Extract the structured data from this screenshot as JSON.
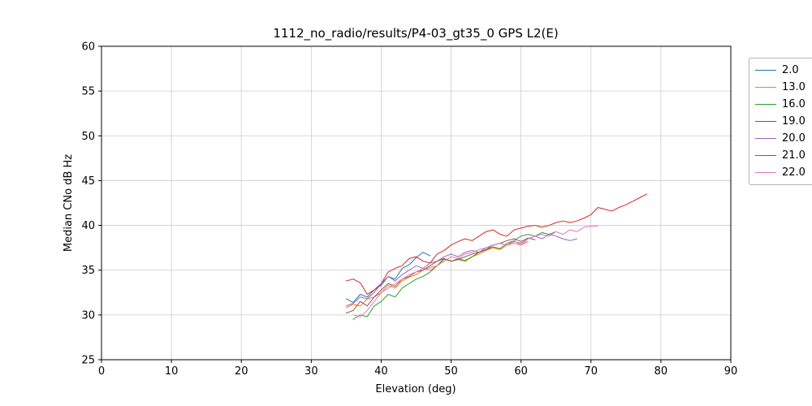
{
  "chart_data": {
    "type": "line",
    "title": "1112_no_radio/results/P4-03_gt35_0 GPS L2(E)",
    "xlabel": "Elevation (deg)",
    "ylabel": "Median CNo dB Hz",
    "xlim": [
      0,
      90
    ],
    "ylim": [
      25,
      60
    ],
    "xticks": [
      0,
      10,
      20,
      30,
      40,
      50,
      60,
      70,
      80,
      90
    ],
    "yticks": [
      25,
      30,
      35,
      40,
      45,
      50,
      55,
      60
    ],
    "grid": true,
    "legend_position": "outside-right",
    "series": [
      {
        "name": "2.0",
        "color": "#1f77b4",
        "points": [
          [
            35,
            31.8
          ],
          [
            36,
            31.4
          ],
          [
            37,
            32.3
          ],
          [
            38,
            32.0
          ],
          [
            39,
            32.8
          ],
          [
            40,
            33.3
          ],
          [
            41,
            34.3
          ],
          [
            42,
            34.0
          ],
          [
            43,
            35.2
          ],
          [
            44,
            35.6
          ],
          [
            45,
            36.4
          ],
          [
            46,
            37.0
          ],
          [
            47,
            36.6
          ]
        ]
      },
      {
        "name": "13.0",
        "color": "#ff7f0e",
        "points": [
          [
            35,
            30.8
          ],
          [
            36,
            31.2
          ],
          [
            37,
            31.0
          ],
          [
            38,
            31.8
          ],
          [
            39,
            32.0
          ],
          [
            40,
            32.5
          ],
          [
            41,
            33.3
          ],
          [
            42,
            33.0
          ],
          [
            43,
            33.8
          ],
          [
            44,
            34.2
          ],
          [
            45,
            34.5
          ],
          [
            46,
            35.0
          ],
          [
            47,
            35.3
          ],
          [
            48,
            35.5
          ],
          [
            49,
            36.2
          ],
          [
            50,
            36.0
          ],
          [
            51,
            36.3
          ],
          [
            52,
            36.1
          ],
          [
            53,
            36.5
          ],
          [
            54,
            36.8
          ],
          [
            55,
            37.2
          ],
          [
            56,
            37.5
          ],
          [
            57,
            37.3
          ],
          [
            58,
            37.8
          ],
          [
            59,
            38.0
          ],
          [
            60,
            37.8
          ],
          [
            61,
            38.2
          ]
        ]
      },
      {
        "name": "16.0",
        "color": "#2ca02c",
        "points": [
          [
            36,
            29.5
          ],
          [
            37,
            30.0
          ],
          [
            38,
            29.8
          ],
          [
            39,
            31.0
          ],
          [
            40,
            31.5
          ],
          [
            41,
            32.3
          ],
          [
            42,
            32.0
          ],
          [
            43,
            33.0
          ],
          [
            44,
            33.5
          ],
          [
            45,
            34.0
          ],
          [
            46,
            34.3
          ],
          [
            47,
            34.8
          ],
          [
            48,
            35.5
          ],
          [
            49,
            36.3
          ],
          [
            50,
            36.0
          ],
          [
            51,
            36.2
          ],
          [
            52,
            36.0
          ],
          [
            53,
            36.5
          ],
          [
            54,
            37.0
          ],
          [
            55,
            37.3
          ],
          [
            56,
            37.6
          ],
          [
            57,
            37.4
          ],
          [
            58,
            38.0
          ],
          [
            59,
            38.3
          ],
          [
            60,
            38.8
          ],
          [
            61,
            39.0
          ],
          [
            62,
            38.8
          ],
          [
            63,
            39.2
          ],
          [
            64,
            39.0
          ],
          [
            65,
            39.3
          ]
        ]
      },
      {
        "name": "19.0",
        "color": "#d62728",
        "points": [
          [
            35,
            33.8
          ],
          [
            36,
            34.0
          ],
          [
            37,
            33.6
          ],
          [
            38,
            32.3
          ],
          [
            39,
            32.8
          ],
          [
            40,
            33.5
          ],
          [
            41,
            34.8
          ],
          [
            42,
            35.2
          ],
          [
            43,
            35.5
          ],
          [
            44,
            36.3
          ],
          [
            45,
            36.5
          ],
          [
            46,
            36.0
          ],
          [
            47,
            35.8
          ],
          [
            48,
            36.8
          ],
          [
            49,
            37.2
          ],
          [
            50,
            37.8
          ],
          [
            51,
            38.2
          ],
          [
            52,
            38.5
          ],
          [
            53,
            38.3
          ],
          [
            54,
            38.8
          ],
          [
            55,
            39.3
          ],
          [
            56,
            39.5
          ],
          [
            57,
            39.0
          ],
          [
            58,
            38.8
          ],
          [
            59,
            39.5
          ],
          [
            60,
            39.7
          ],
          [
            61,
            39.9
          ],
          [
            62,
            40.0
          ],
          [
            63,
            39.8
          ],
          [
            64,
            40.0
          ],
          [
            65,
            40.3
          ],
          [
            66,
            40.5
          ],
          [
            67,
            40.3
          ],
          [
            68,
            40.5
          ],
          [
            69,
            40.8
          ],
          [
            70,
            41.2
          ],
          [
            71,
            42.0
          ],
          [
            72,
            41.8
          ],
          [
            73,
            41.6
          ],
          [
            74,
            42.0
          ],
          [
            75,
            42.3
          ],
          [
            76,
            42.7
          ],
          [
            77,
            43.1
          ],
          [
            78,
            43.5
          ]
        ]
      },
      {
        "name": "20.0",
        "color": "#9467bd",
        "points": [
          [
            35,
            31.0
          ],
          [
            36,
            31.3
          ],
          [
            37,
            32.0
          ],
          [
            38,
            31.8
          ],
          [
            39,
            32.5
          ],
          [
            40,
            33.5
          ],
          [
            41,
            34.3
          ],
          [
            42,
            33.8
          ],
          [
            43,
            34.5
          ],
          [
            44,
            35.0
          ],
          [
            45,
            35.5
          ],
          [
            46,
            35.2
          ],
          [
            47,
            35.8
          ],
          [
            48,
            36.0
          ],
          [
            49,
            36.5
          ],
          [
            50,
            36.8
          ],
          [
            51,
            36.5
          ],
          [
            52,
            37.0
          ],
          [
            53,
            37.2
          ],
          [
            54,
            37.0
          ],
          [
            55,
            37.5
          ],
          [
            56,
            37.8
          ],
          [
            57,
            38.0
          ],
          [
            58,
            37.8
          ],
          [
            59,
            38.2
          ],
          [
            60,
            38.0
          ],
          [
            61,
            38.5
          ],
          [
            62,
            38.8
          ],
          [
            63,
            38.5
          ],
          [
            64,
            39.0
          ],
          [
            65,
            38.8
          ],
          [
            66,
            38.5
          ],
          [
            67,
            38.3
          ],
          [
            68,
            38.5
          ]
        ]
      },
      {
        "name": "21.0",
        "color": "#8c564b",
        "points": [
          [
            35,
            30.2
          ],
          [
            36,
            30.5
          ],
          [
            37,
            31.5
          ],
          [
            38,
            31.0
          ],
          [
            39,
            32.0
          ],
          [
            40,
            32.8
          ],
          [
            41,
            33.5
          ],
          [
            42,
            33.2
          ],
          [
            43,
            34.0
          ],
          [
            44,
            34.3
          ],
          [
            45,
            34.8
          ],
          [
            46,
            35.0
          ],
          [
            47,
            35.5
          ],
          [
            48,
            36.0
          ],
          [
            49,
            36.3
          ],
          [
            50,
            36.0
          ],
          [
            51,
            36.2
          ],
          [
            52,
            36.5
          ],
          [
            53,
            36.8
          ],
          [
            54,
            37.0
          ],
          [
            55,
            37.3
          ],
          [
            56,
            37.8
          ],
          [
            57,
            38.0
          ],
          [
            58,
            38.3
          ],
          [
            59,
            38.5
          ],
          [
            60,
            38.2
          ],
          [
            61,
            38.6
          ],
          [
            62,
            38.4
          ]
        ]
      },
      {
        "name": "22.0",
        "color": "#e377c2",
        "points": [
          [
            36,
            30.0
          ],
          [
            37,
            29.8
          ],
          [
            38,
            30.5
          ],
          [
            39,
            31.5
          ],
          [
            40,
            32.5
          ],
          [
            41,
            33.0
          ],
          [
            42,
            33.5
          ],
          [
            43,
            34.0
          ],
          [
            44,
            34.5
          ],
          [
            45,
            34.8
          ],
          [
            46,
            35.2
          ],
          [
            47,
            35.0
          ],
          [
            48,
            35.5
          ],
          [
            49,
            36.0
          ],
          [
            50,
            36.5
          ],
          [
            51,
            36.3
          ],
          [
            52,
            36.8
          ],
          [
            53,
            37.0
          ],
          [
            54,
            37.3
          ],
          [
            55,
            37.5
          ],
          [
            56,
            37.8
          ],
          [
            57,
            38.0
          ],
          [
            58,
            37.8
          ],
          [
            59,
            38.3
          ],
          [
            60,
            37.8
          ],
          [
            61,
            38.5
          ],
          [
            62,
            38.8
          ],
          [
            63,
            39.0
          ],
          [
            64,
            38.8
          ],
          [
            65,
            39.3
          ],
          [
            66,
            39.0
          ],
          [
            67,
            39.5
          ],
          [
            68,
            39.3
          ],
          [
            69,
            39.8
          ],
          [
            70,
            39.9
          ],
          [
            71,
            39.9
          ]
        ]
      }
    ]
  }
}
